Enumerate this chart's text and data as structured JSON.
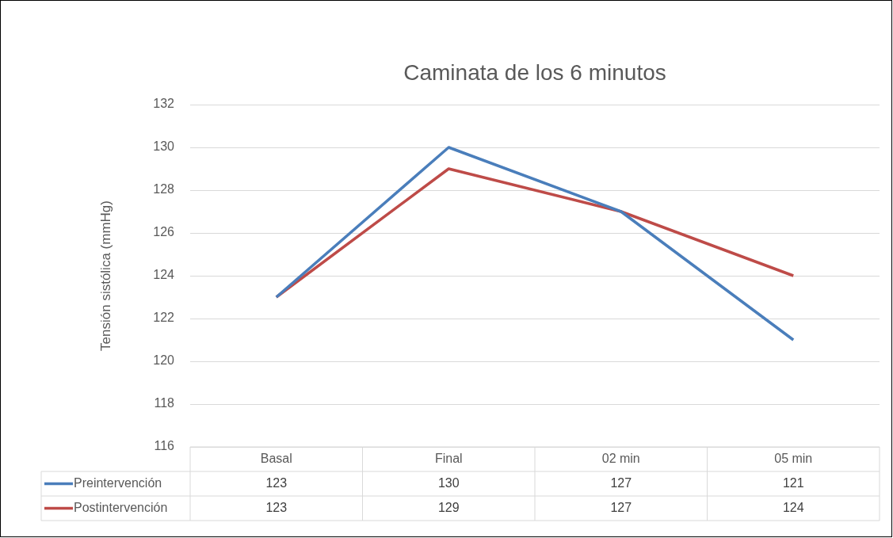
{
  "chart_data": {
    "type": "line",
    "title": "Caminata de los 6 minutos",
    "ylabel": "Tensión sistólica (mmHg)",
    "categories": [
      "Basal",
      "Final",
      "02 min",
      "05 min"
    ],
    "series": [
      {
        "name": "Preintervención",
        "color": "#4a7ebb",
        "values": [
          123,
          130,
          127,
          121
        ]
      },
      {
        "name": "Postintervención",
        "color": "#be4b48",
        "values": [
          123,
          129,
          127,
          124
        ]
      }
    ],
    "ylim": [
      116,
      132
    ],
    "yticks": [
      116,
      118,
      120,
      122,
      124,
      126,
      128,
      130,
      132
    ],
    "grid": "y",
    "legend": "bottom",
    "data_labels": true,
    "marker": "none",
    "line_style": "solid"
  }
}
